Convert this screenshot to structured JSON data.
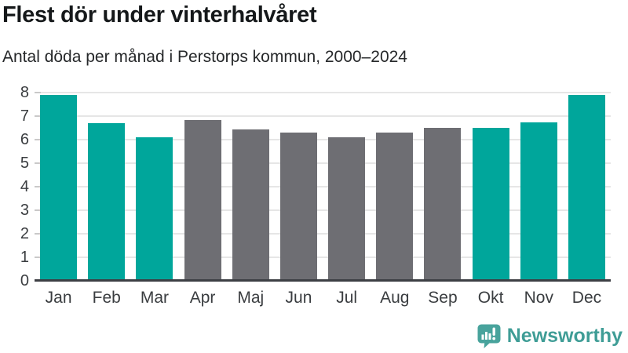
{
  "header": {
    "title": "Flest dör under vinterhalvåret",
    "subtitle": "Antal döda per månad i Perstorps kommun, 2000–2024"
  },
  "chart_data": {
    "type": "bar",
    "title": "Flest dör under vinterhalvåret",
    "subtitle": "Antal döda per månad i Perstorps kommun, 2000–2024",
    "categories": [
      "Jan",
      "Feb",
      "Mar",
      "Apr",
      "Maj",
      "Jun",
      "Jul",
      "Aug",
      "Sep",
      "Okt",
      "Nov",
      "Dec"
    ],
    "values": [
      7.9,
      6.7,
      6.1,
      6.85,
      6.45,
      6.3,
      6.1,
      6.3,
      6.5,
      6.5,
      6.75,
      7.9
    ],
    "bar_colors": [
      "teal",
      "teal",
      "teal",
      "gray",
      "gray",
      "gray",
      "gray",
      "gray",
      "gray",
      "teal",
      "teal",
      "teal"
    ],
    "palette": {
      "teal": "#00a69b",
      "gray": "#6e6e73"
    },
    "xlabel": "",
    "ylabel": "",
    "ylim": [
      0,
      8
    ],
    "yticks": [
      0,
      1,
      2,
      3,
      4,
      5,
      6,
      7,
      8
    ],
    "grid": true,
    "legend_position": "none",
    "highlight_meaning": "winter-half-year months (Okt–Mar) in teal, summer-half-year months (Apr–Sep) in gray"
  },
  "branding": {
    "name": "Newsworthy",
    "text_color": "#3f9d96",
    "icon": "newsworthy-speech-bubble-bar-chart-icon",
    "icon_color": "#48a39c"
  }
}
